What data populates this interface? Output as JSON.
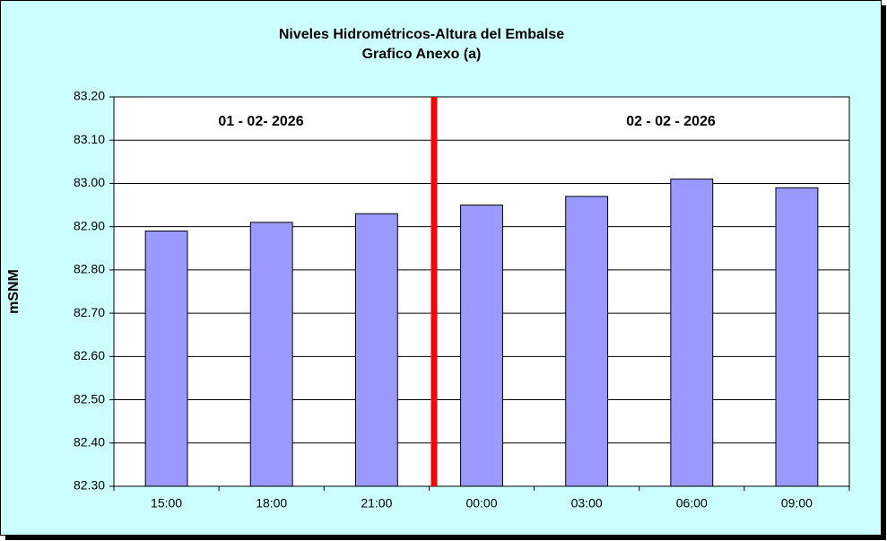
{
  "chart_data": {
    "type": "bar",
    "title": "Niveles Hidrométricos-Altura del Embalse",
    "subtitle": "Grafico Anexo (a)",
    "y_label": "mSNM",
    "annotations": [
      "01 - 02- 2026",
      "02 - 02 - 2026"
    ],
    "categories": [
      "15:00",
      "18:00",
      "21:00",
      "00:00",
      "03:00",
      "06:00",
      "09:00"
    ],
    "values": [
      82.89,
      82.91,
      82.93,
      82.95,
      82.97,
      83.01,
      82.99
    ],
    "color": "#9999ff",
    "ylim": [
      82.3,
      83.2
    ],
    "yticks": [
      {
        "value": 82.3,
        "label": "82.30"
      },
      {
        "value": 82.4,
        "label": "82.40"
      },
      {
        "value": 82.5,
        "label": "82.50"
      },
      {
        "value": 82.6,
        "label": "82.60"
      },
      {
        "value": 82.7,
        "label": "82.70"
      },
      {
        "value": 82.8,
        "label": "82.80"
      },
      {
        "value": 82.9,
        "label": "82.90"
      },
      {
        "value": 83.0,
        "label": "83.00"
      },
      {
        "value": 83.1,
        "label": "83.10"
      },
      {
        "value": 83.2,
        "label": "83.20"
      }
    ],
    "grid": true
  }
}
